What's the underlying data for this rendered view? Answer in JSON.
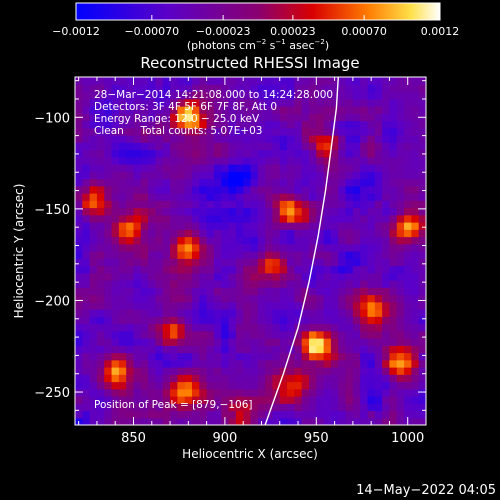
{
  "chart_data": {
    "type": "heatmap",
    "title": "Reconstructed RHESSI Image",
    "xlabel": "Heliocentric X (arcsec)",
    "ylabel": "Heliocentric Y (arcsec)",
    "xlim": [
      818,
      1010
    ],
    "ylim": [
      -268,
      -78
    ],
    "x_ticks": [
      850,
      900,
      950,
      1000
    ],
    "x_tick_labels": [
      "850",
      "900",
      "950",
      "1000"
    ],
    "y_ticks": [
      -250,
      -200,
      -150,
      -100
    ],
    "y_tick_labels": [
      "−250",
      "−200",
      "−150",
      "−100"
    ],
    "colorbar": {
      "min": -0.0012,
      "max": 0.0012,
      "ticks": [
        -0.0012,
        -0.0007,
        -0.00023,
        0.00023,
        0.0007,
        0.0012
      ],
      "tick_labels": [
        "−0.0012",
        "−0.00070",
        "−0.00023",
        "0.00023",
        "0.00070",
        "0.0012"
      ],
      "label_main": "(photons cm",
      "label_exp1": "−2",
      "label_mid": " s",
      "label_exp2": "−1",
      "label_mid2": " asec",
      "label_exp3": "−2",
      "label_end": ")"
    },
    "annotations": [
      "28−Mar−2014 14:21:08.000 to 14:24:28.000",
      "Detectors: 3F 4F 5F 6F 7F 8F, Att 0",
      "Energy Range: 12.0 − 25.0 keV",
      "Clean     Total counts: 5.07E+03"
    ],
    "peak_text": "Position of Peak = [879,−106]",
    "limb_curve": [
      [
        922,
        -268
      ],
      [
        932,
        -240
      ],
      [
        940,
        -215
      ],
      [
        946,
        -190
      ],
      [
        951,
        -165
      ],
      [
        955,
        -140
      ],
      [
        958,
        -118
      ],
      [
        961,
        -95
      ],
      [
        962,
        -78
      ]
    ],
    "hot_spots": [
      {
        "x": 880,
        "y": -100,
        "v": 0.001
      },
      {
        "x": 828,
        "y": -145,
        "v": 0.0009
      },
      {
        "x": 848,
        "y": -162,
        "v": 0.0008
      },
      {
        "x": 880,
        "y": -170,
        "v": 0.0007
      },
      {
        "x": 870,
        "y": -215,
        "v": 0.0008
      },
      {
        "x": 840,
        "y": -240,
        "v": 0.0007
      },
      {
        "x": 878,
        "y": -250,
        "v": 0.0007
      },
      {
        "x": 935,
        "y": -150,
        "v": 0.0009
      },
      {
        "x": 925,
        "y": -180,
        "v": 0.0006
      },
      {
        "x": 955,
        "y": -115,
        "v": 0.0008
      },
      {
        "x": 950,
        "y": -225,
        "v": 0.001
      },
      {
        "x": 935,
        "y": -245,
        "v": 0.0008
      },
      {
        "x": 980,
        "y": -205,
        "v": 0.0006
      },
      {
        "x": 1000,
        "y": -160,
        "v": 0.001
      },
      {
        "x": 995,
        "y": -235,
        "v": 0.0009
      },
      {
        "x": 910,
        "y": -265,
        "v": 0.0005
      }
    ],
    "cold_spots": [
      {
        "x": 838,
        "y": -98,
        "v": -0.0009
      },
      {
        "x": 905,
        "y": -135,
        "v": -0.0012
      },
      {
        "x": 915,
        "y": -170,
        "v": -0.0008
      },
      {
        "x": 905,
        "y": -205,
        "v": -0.0007
      },
      {
        "x": 965,
        "y": -180,
        "v": -0.0007
      },
      {
        "x": 975,
        "y": -140,
        "v": -0.0008
      },
      {
        "x": 920,
        "y": -230,
        "v": -0.0005
      },
      {
        "x": 985,
        "y": -255,
        "v": -0.0006
      }
    ]
  },
  "footer": {
    "datetime": "14−May−2022 04:05"
  }
}
